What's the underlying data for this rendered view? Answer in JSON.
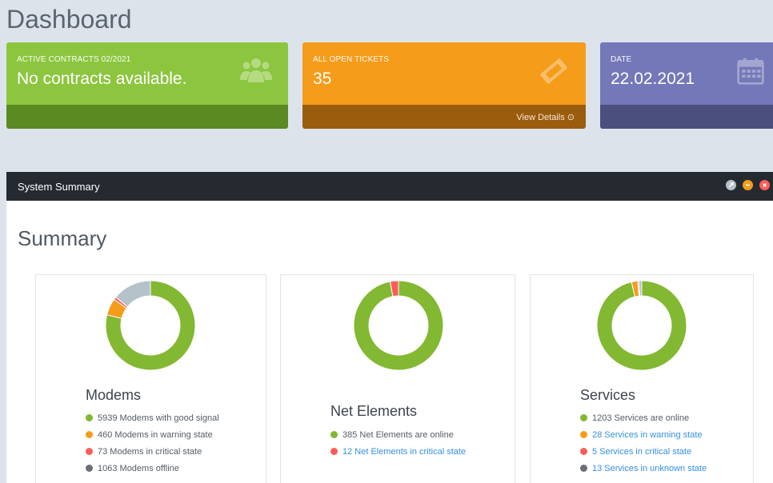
{
  "page": {
    "title": "Dashboard"
  },
  "cards": [
    {
      "label": "ACTIVE CONTRACTS 02/2021",
      "value": "No contracts available.",
      "icon": "users-icon",
      "color": "#8cc63f"
    },
    {
      "label": "ALL OPEN TICKETS",
      "value": "35",
      "icon": "ticket-icon",
      "link": "View Details ⊙",
      "color": "#f59c1a"
    },
    {
      "label": "DATE",
      "value": "22.02.2021",
      "icon": "calendar-icon",
      "color": "#7278b8"
    }
  ],
  "panel": {
    "title": "System Summary"
  },
  "summary": {
    "title": "Summary",
    "colors": {
      "good": "#82b832",
      "warning": "#f59c1a",
      "critical": "#ff5b57",
      "offline": "#b6c2c9",
      "offline_dot": "#6b6f73"
    },
    "boxes": [
      {
        "title": "Modems",
        "items": [
          {
            "text": "5939 Modems with good signal",
            "count": 5939,
            "status": "good",
            "link": false
          },
          {
            "text": "460 Modems in warning state",
            "count": 460,
            "status": "warning",
            "link": false
          },
          {
            "text": "73 Modems in critical state",
            "count": 73,
            "status": "critical",
            "link": false
          },
          {
            "text": "1063 Modems offline",
            "count": 1063,
            "status": "offline",
            "link": false
          }
        ]
      },
      {
        "title": "Net Elements",
        "items": [
          {
            "text": "385 Net Elements are online",
            "count": 385,
            "status": "good",
            "link": false
          },
          {
            "text": "12 Net Elements in critical state",
            "count": 12,
            "status": "critical",
            "link": true
          }
        ]
      },
      {
        "title": "Services",
        "items": [
          {
            "text": "1203 Services are online",
            "count": 1203,
            "status": "good",
            "link": false
          },
          {
            "text": "28 Services in warning state",
            "count": 28,
            "status": "warning",
            "link": true
          },
          {
            "text": "5 Services in critical state",
            "count": 5,
            "status": "critical",
            "link": true
          },
          {
            "text": "13 Services in unknown state",
            "count": 13,
            "status": "offline",
            "link": true
          }
        ]
      }
    ]
  }
}
